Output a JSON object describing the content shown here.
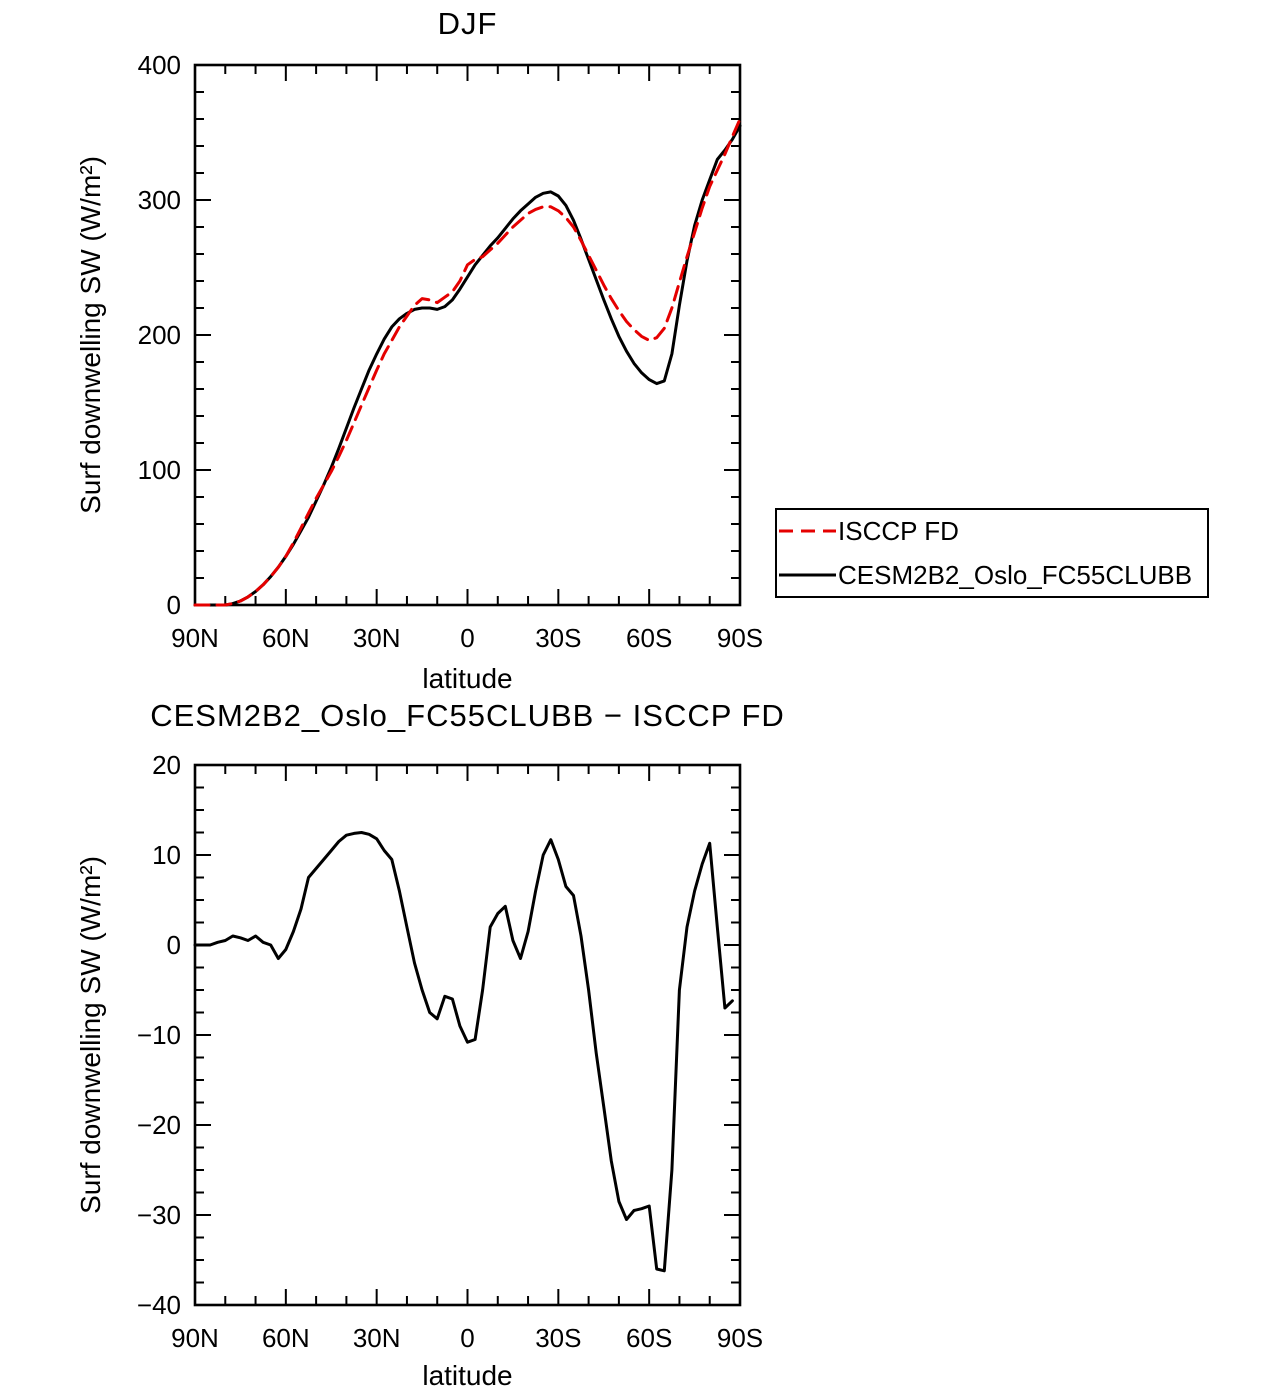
{
  "style": {
    "background": "#ffffff",
    "axis_color": "#000000",
    "series_red": "#e50000",
    "series_black": "#000000"
  },
  "chart_data": [
    {
      "type": "line",
      "title": "DJF",
      "xlabel": "latitude",
      "ylabel": "Surf downwelling SW (W/m²)",
      "xlim": [
        90,
        -90
      ],
      "ylim": [
        0,
        400
      ],
      "xticks": [
        90,
        60,
        30,
        0,
        -30,
        -60,
        -90
      ],
      "xtick_labels": [
        "90N",
        "60N",
        "30N",
        "0",
        "30S",
        "60S",
        "90S"
      ],
      "yticks": [
        0,
        100,
        200,
        300,
        400
      ],
      "x_minor_step": 10,
      "y_minor_step": 20,
      "grid": false,
      "legend": true,
      "legend_position": "outside-right-below",
      "series": [
        {
          "name": "ISCCP FD",
          "color": "#e50000",
          "dash": "14 8",
          "x": [
            90,
            85,
            80,
            77.5,
            75,
            72.5,
            70,
            67.5,
            65,
            62.5,
            60,
            57.5,
            55,
            52.5,
            50,
            47.5,
            45,
            42.5,
            40,
            37.5,
            35,
            32.5,
            30,
            27.5,
            25,
            22.5,
            20,
            17.5,
            15,
            12.5,
            10,
            7.5,
            5,
            2.5,
            0,
            -2.5,
            -5,
            -7.5,
            -10,
            -12.5,
            -15,
            -17.5,
            -20,
            -22.5,
            -25,
            -27.5,
            -30,
            -32.5,
            -35,
            -37.5,
            -40,
            -42.5,
            -45,
            -47.5,
            -50,
            -52.5,
            -55,
            -57.5,
            -60,
            -62.5,
            -65,
            -67.5,
            -70,
            -72.5,
            -75,
            -77.5,
            -80,
            -82.5,
            -85,
            -87.5,
            -90
          ],
          "y": [
            0,
            0,
            0,
            1,
            3,
            6,
            10,
            15,
            21,
            28,
            36,
            46,
            57,
            68,
            79,
            89,
            99,
            110,
            122,
            135,
            148,
            161,
            174,
            186,
            196,
            206,
            214,
            222,
            227,
            226,
            224,
            228,
            232,
            240,
            252,
            256,
            258,
            263,
            268,
            274,
            280,
            285,
            290,
            293,
            295,
            295,
            292,
            287,
            280,
            270,
            259,
            248,
            237,
            227,
            218,
            210,
            204,
            199,
            196,
            198,
            205,
            220,
            239,
            258,
            276,
            294,
            310,
            322,
            334,
            347,
            360
          ]
        },
        {
          "name": "CESM2B2_Oslo_FC55CLUBB",
          "color": "#000000",
          "dash": "",
          "x": [
            90,
            85,
            80,
            77.5,
            75,
            72.5,
            70,
            67.5,
            65,
            62.5,
            60,
            57.5,
            55,
            52.5,
            50,
            47.5,
            45,
            42.5,
            40,
            37.5,
            35,
            32.5,
            30,
            27.5,
            25,
            22.5,
            20,
            17.5,
            15,
            12.5,
            10,
            7.5,
            5,
            2.5,
            0,
            -2.5,
            -5,
            -7.5,
            -10,
            -12.5,
            -15,
            -17.5,
            -20,
            -22.5,
            -25,
            -27.5,
            -30,
            -32.5,
            -35,
            -37.5,
            -40,
            -42.5,
            -45,
            -47.5,
            -50,
            -52.5,
            -55,
            -57.5,
            -60,
            -62.5,
            -65,
            -67.5,
            -70,
            -72.5,
            -75,
            -77.5,
            -80,
            -82.5,
            -85,
            -87.5,
            -90
          ],
          "y": [
            0,
            0,
            0,
            1,
            3,
            6,
            10,
            15,
            21,
            28,
            36,
            45,
            55,
            65,
            77,
            89,
            102,
            116,
            131,
            146,
            160,
            174,
            186,
            197,
            206,
            212,
            216,
            219,
            220,
            220,
            219,
            221,
            226,
            234,
            243,
            252,
            259,
            266,
            272,
            279,
            286,
            292,
            297,
            302,
            305,
            306,
            303,
            296,
            285,
            271,
            256,
            241,
            226,
            212,
            199,
            188,
            179,
            172,
            167,
            164,
            166,
            186,
            222,
            255,
            281,
            300,
            315,
            330,
            337,
            345,
            355
          ]
        }
      ]
    },
    {
      "type": "line",
      "title": "CESM2B2_Oslo_FC55CLUBB − ISCCP FD",
      "xlabel": "latitude",
      "ylabel": "Surf downwelling SW (W/m²)",
      "xlim": [
        90,
        -90
      ],
      "ylim": [
        -40,
        20
      ],
      "xticks": [
        90,
        60,
        30,
        0,
        -30,
        -60,
        -90
      ],
      "xtick_labels": [
        "90N",
        "60N",
        "30N",
        "0",
        "30S",
        "60S",
        "90S"
      ],
      "yticks": [
        -40,
        -30,
        -20,
        -10,
        0,
        10,
        20
      ],
      "x_minor_step": 10,
      "y_minor_step": 2.5,
      "grid": false,
      "legend": false,
      "series": [
        {
          "name": "CESM2B2_Oslo_FC55CLUBB minus ISCCP FD",
          "color": "#000000",
          "dash": "",
          "x": [
            90,
            87.5,
            85,
            82.5,
            80,
            77.5,
            75,
            72.5,
            70,
            67.5,
            65,
            62.5,
            60,
            57.5,
            55,
            52.5,
            50,
            47.5,
            45,
            42.5,
            40,
            37.5,
            35,
            32.5,
            30,
            27.5,
            25,
            22.5,
            20,
            17.5,
            15,
            12.5,
            10,
            7.5,
            5,
            2.5,
            0,
            -2.5,
            -5,
            -7.5,
            -10,
            -12.5,
            -15,
            -17.5,
            -20,
            -22.5,
            -25,
            -27.5,
            -30,
            -32.5,
            -35,
            -37.5,
            -40,
            -42.5,
            -45,
            -47.5,
            -50,
            -52.5,
            -55,
            -57.5,
            -60,
            -62.5,
            -65,
            -67.5,
            -70,
            -72.5,
            -75,
            -77.5,
            -80,
            -82.5,
            -85,
            -87.5
          ],
          "y": [
            0,
            0,
            0,
            0.3,
            0.5,
            1,
            0.8,
            0.5,
            1,
            0.3,
            0,
            -1.5,
            -0.5,
            1.5,
            4,
            7.5,
            8.5,
            9.5,
            10.5,
            11.5,
            12.2,
            12.4,
            12.5,
            12.3,
            11.8,
            10.5,
            9.5,
            6,
            2,
            -2,
            -5,
            -7.5,
            -8.2,
            -5.7,
            -6,
            -9,
            -10.8,
            -10.5,
            -5,
            2,
            3.5,
            4.3,
            0.5,
            -1.5,
            1.5,
            6,
            10,
            11.7,
            9.5,
            6.5,
            5.5,
            1,
            -5,
            -12,
            -18,
            -24,
            -28.5,
            -30.5,
            -29.5,
            -29.3,
            -29,
            -36,
            -36.2,
            -25,
            -5,
            2,
            6,
            9,
            11.3,
            2,
            -7,
            -6.2
          ]
        }
      ]
    }
  ]
}
